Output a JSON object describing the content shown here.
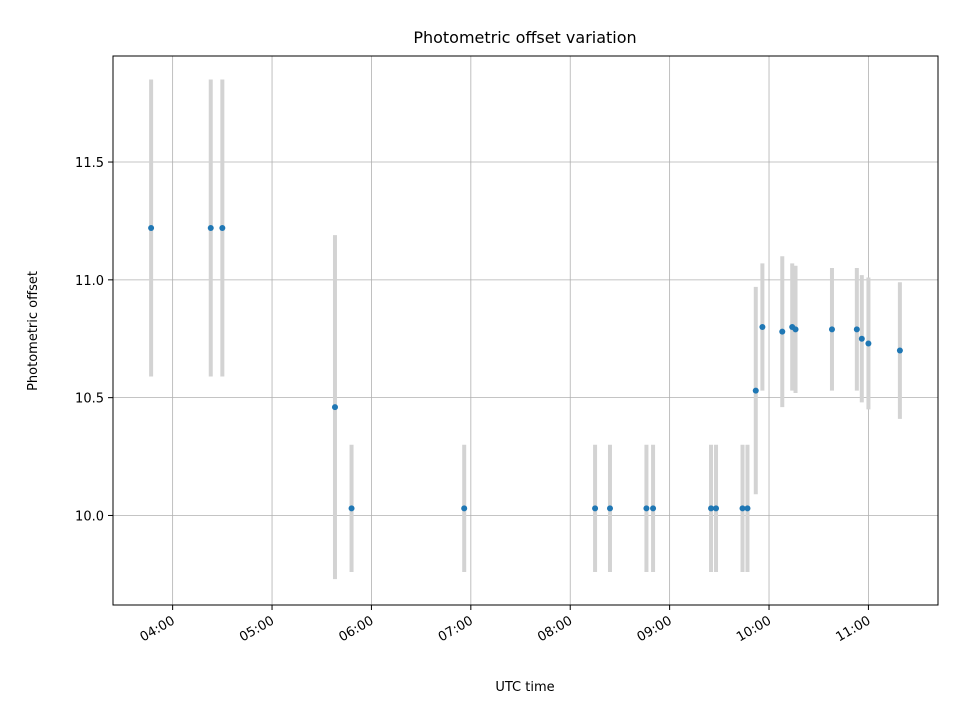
{
  "chart_data": {
    "type": "scatter",
    "title": "Photometric offset variation",
    "xlabel": "UTC time",
    "ylabel": "Photometric offset",
    "xlim": [
      "03:24",
      "11:42"
    ],
    "ylim": [
      9.62,
      11.95
    ],
    "xticks": [
      "04:00",
      "05:00",
      "06:00",
      "07:00",
      "08:00",
      "09:00",
      "10:00",
      "11:00"
    ],
    "yticks": [
      10.0,
      10.5,
      11.0,
      11.5
    ],
    "ytick_labels": [
      "10.0",
      "10.5",
      "11.0",
      "11.5"
    ],
    "grid": true,
    "marker_color": "#1f77b4",
    "errorbar_color": "#d3d3d3",
    "points": [
      {
        "x": "03:47",
        "y": 11.22,
        "err": 0.63
      },
      {
        "x": "04:23",
        "y": 11.22,
        "err": 0.63
      },
      {
        "x": "04:30",
        "y": 11.22,
        "err": 0.63
      },
      {
        "x": "05:38",
        "y": 10.46,
        "err": 0.73
      },
      {
        "x": "05:48",
        "y": 10.03,
        "err": 0.27
      },
      {
        "x": "06:56",
        "y": 10.03,
        "err": 0.27
      },
      {
        "x": "08:15",
        "y": 10.03,
        "err": 0.27
      },
      {
        "x": "08:24",
        "y": 10.03,
        "err": 0.27
      },
      {
        "x": "08:46",
        "y": 10.03,
        "err": 0.27
      },
      {
        "x": "08:50",
        "y": 10.03,
        "err": 0.27
      },
      {
        "x": "09:25",
        "y": 10.03,
        "err": 0.27
      },
      {
        "x": "09:28",
        "y": 10.03,
        "err": 0.27
      },
      {
        "x": "09:44",
        "y": 10.03,
        "err": 0.27
      },
      {
        "x": "09:47",
        "y": 10.03,
        "err": 0.27
      },
      {
        "x": "09:52",
        "y": 10.53,
        "err": 0.44
      },
      {
        "x": "09:56",
        "y": 10.8,
        "err": 0.27
      },
      {
        "x": "10:08",
        "y": 10.78,
        "err": 0.32
      },
      {
        "x": "10:14",
        "y": 10.8,
        "err": 0.27
      },
      {
        "x": "10:16",
        "y": 10.79,
        "err": 0.27
      },
      {
        "x": "10:38",
        "y": 10.79,
        "err": 0.26
      },
      {
        "x": "10:53",
        "y": 10.79,
        "err": 0.26
      },
      {
        "x": "10:56",
        "y": 10.75,
        "err": 0.27
      },
      {
        "x": "11:00",
        "y": 10.73,
        "err": 0.28
      },
      {
        "x": "11:19",
        "y": 10.7,
        "err": 0.29
      }
    ]
  }
}
